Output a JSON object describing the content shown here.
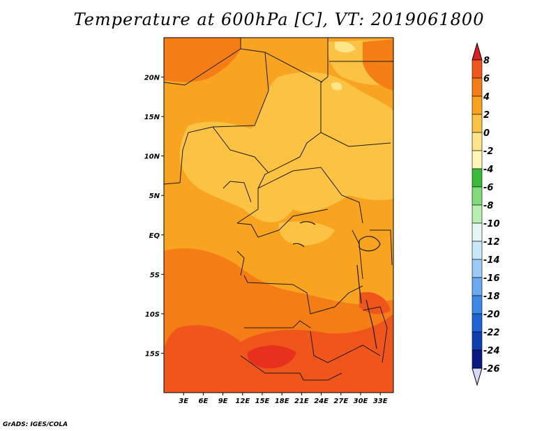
{
  "title": "Temperature at 600hPa [C], VT: 2019061800",
  "credit": "GrADS: IGES/COLA",
  "map": {
    "lon_range": [
      0,
      35
    ],
    "lat_range": [
      -20,
      25
    ],
    "x_ticks": [
      "3E",
      "6E",
      "9E",
      "12E",
      "15E",
      "18E",
      "21E",
      "24E",
      "27E",
      "30E",
      "33E"
    ],
    "x_tick_values": [
      3,
      6,
      9,
      12,
      15,
      18,
      21,
      24,
      27,
      30,
      33
    ],
    "y_ticks": [
      "20N",
      "15N",
      "10N",
      "5N",
      "EQ",
      "5S",
      "10S",
      "15S"
    ],
    "y_tick_values": [
      20,
      15,
      10,
      5,
      0,
      -5,
      -10,
      -15
    ]
  },
  "colorbar": {
    "labels": [
      "8",
      "6",
      "4",
      "2",
      "0",
      "-2",
      "-4",
      "-6",
      "-8",
      "-10",
      "-12",
      "-14",
      "-16",
      "-18",
      "-20",
      "-22",
      "-24",
      "-26"
    ],
    "values": [
      8,
      6,
      4,
      2,
      0,
      -2,
      -4,
      -6,
      -8,
      -10,
      -12,
      -14,
      -16,
      -18,
      -20,
      -22,
      -24,
      -26
    ],
    "colors": [
      "#e8301e",
      "#f0561b",
      "#f57d16",
      "#f9a421",
      "#fbc244",
      "#fde68a",
      "#fff7b5",
      "#3aba3a",
      "#7fdc7a",
      "#b6f0ae",
      "#e4f6f6",
      "#c8e8f8",
      "#9ccbf6",
      "#6aaaf0",
      "#3c8ae6",
      "#1e64d2",
      "#1040b0",
      "#0a1a80"
    ],
    "top_color": "#d8201e",
    "bottom_color": "#d8d8f8"
  }
}
